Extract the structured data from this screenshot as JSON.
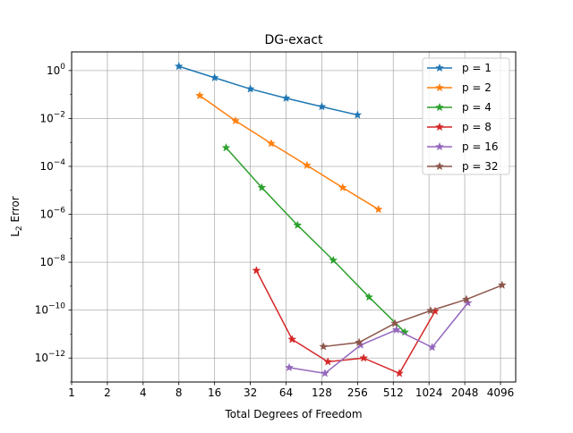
{
  "chart_data": {
    "type": "line",
    "title": "DG-exact",
    "xlabel": "Total Degrees of Freedom",
    "ylabel_main": "L",
    "ylabel_sub": "2",
    "ylabel_rest": " Error",
    "xscale": "log2",
    "yscale": "log10",
    "xlim": [
      1,
      5500
    ],
    "ylim": [
      1e-13,
      6
    ],
    "xticks": [
      1,
      2,
      4,
      8,
      16,
      32,
      64,
      128,
      256,
      512,
      1024,
      2048,
      4096
    ],
    "yticks": [
      {
        "exp": "0",
        "value": 1
      },
      {
        "exp": "−2",
        "value": 0.01
      },
      {
        "exp": "−4",
        "value": 0.0001
      },
      {
        "exp": "−6",
        "value": 1e-06
      },
      {
        "exp": "−8",
        "value": 1e-08
      },
      {
        "exp": "−10",
        "value": 1e-10
      },
      {
        "exp": "−12",
        "value": 1e-12
      }
    ],
    "grid": true,
    "legend_position": "top-right",
    "series": [
      {
        "name": "p = 1",
        "color": "#1f77b4",
        "x": [
          8,
          16,
          32,
          64,
          128,
          256
        ],
        "y": [
          1.5,
          0.5,
          0.17,
          0.07,
          0.031,
          0.014
        ]
      },
      {
        "name": "p = 2",
        "color": "#ff7f0e",
        "x": [
          12,
          24,
          48,
          96,
          192,
          384
        ],
        "y": [
          0.09,
          0.008,
          0.0009,
          0.00011,
          1.3e-05,
          1.6e-06
        ]
      },
      {
        "name": "p = 4",
        "color": "#2ca02c",
        "x": [
          20,
          40,
          80,
          160,
          320,
          640
        ],
        "y": [
          0.0006,
          1.3e-05,
          3.5e-07,
          1.2e-08,
          3.5e-10,
          1.2e-11
        ]
      },
      {
        "name": "p = 8",
        "color": "#d62728",
        "x": [
          36,
          72,
          144,
          288,
          576,
          1152
        ],
        "y": [
          4.5e-09,
          6e-12,
          7e-13,
          1e-12,
          2.3e-13,
          9e-11
        ]
      },
      {
        "name": "p = 16",
        "color": "#9467bd",
        "x": [
          68,
          136,
          272,
          544,
          1088,
          2176
        ],
        "y": [
          4e-13,
          2.3e-13,
          3.5e-12,
          1.5e-11,
          2.8e-12,
          2e-10
        ]
      },
      {
        "name": "p = 32",
        "color": "#8c564b",
        "x": [
          132,
          264,
          528,
          1056,
          2112,
          4224
        ],
        "y": [
          3e-12,
          4.5e-12,
          2.8e-11,
          9.5e-11,
          2.8e-10,
          1.1e-09
        ]
      }
    ]
  }
}
